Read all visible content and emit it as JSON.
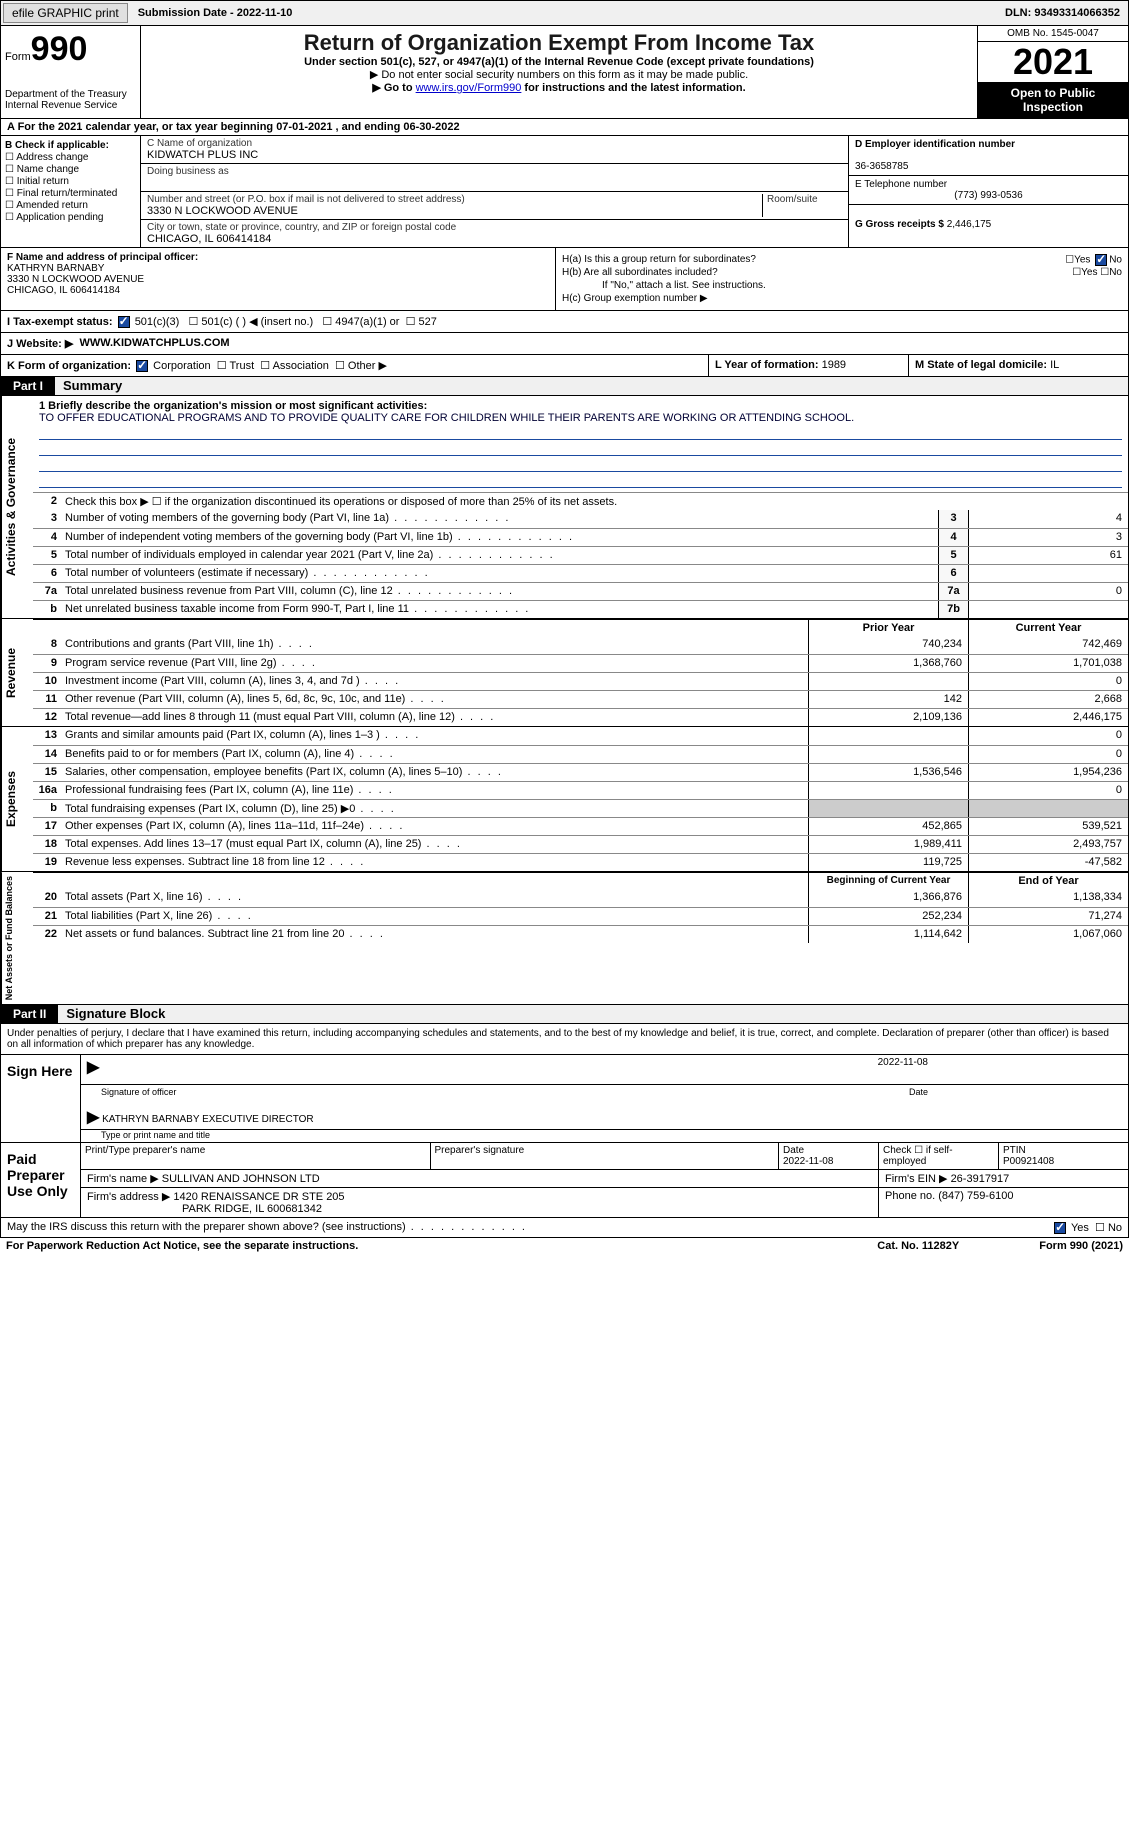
{
  "topbar": {
    "efile": "efile GRAPHIC print",
    "submission": "Submission Date - 2022-11-10",
    "dln": "DLN: 93493314066352"
  },
  "header": {
    "form_label": "Form",
    "form_num": "990",
    "dept": "Department of the Treasury",
    "irs": "Internal Revenue Service",
    "title": "Return of Organization Exempt From Income Tax",
    "sub": "Under section 501(c), 527, or 4947(a)(1) of the Internal Revenue Code (except private foundations)",
    "note1": "▶ Do not enter social security numbers on this form as it may be made public.",
    "note2_pre": "▶ Go to ",
    "note2_link": "www.irs.gov/Form990",
    "note2_post": " for instructions and the latest information.",
    "omb": "OMB No. 1545-0047",
    "year": "2021",
    "otp": "Open to Public Inspection"
  },
  "rowA": "A For the 2021 calendar year, or tax year beginning 07-01-2021   , and ending 06-30-2022",
  "sectionB": {
    "header": "B Check if applicable:",
    "opts": [
      "Address change",
      "Name change",
      "Initial return",
      "Final return/terminated",
      "Amended return",
      "Application pending"
    ]
  },
  "sectionC": {
    "name_lbl": "C Name of organization",
    "name": "KIDWATCH PLUS INC",
    "dba_lbl": "Doing business as",
    "addr_lbl": "Number and street (or P.O. box if mail is not delivered to street address)",
    "room_lbl": "Room/suite",
    "addr": "3330 N LOCKWOOD AVENUE",
    "city_lbl": "City or town, state or province, country, and ZIP or foreign postal code",
    "city": "CHICAGO, IL  606414184"
  },
  "sectionD": {
    "ein_lbl": "D Employer identification number",
    "ein": "36-3658785",
    "tel_lbl": "E Telephone number",
    "tel": "(773) 993-0536",
    "gross_lbl": "G Gross receipts $",
    "gross": "2,446,175"
  },
  "sectionF": {
    "lbl": "F Name and address of principal officer:",
    "name": "KATHRYN BARNABY",
    "addr1": "3330 N LOCKWOOD AVENUE",
    "addr2": "CHICAGO, IL  606414184"
  },
  "sectionH": {
    "a": "H(a)  Is this a group return for subordinates?",
    "b": "H(b)  Are all subordinates included?",
    "bnote": "If \"No,\" attach a list. See instructions.",
    "c": "H(c)  Group exemption number ▶"
  },
  "rowI": {
    "lbl": "I  Tax-exempt status:",
    "o1": "501(c)(3)",
    "o2": "501(c) (  ) ◀ (insert no.)",
    "o3": "4947(a)(1) or",
    "o4": "527"
  },
  "rowJ": {
    "lbl": "J  Website: ▶",
    "val": "WWW.KIDWATCHPLUS.COM"
  },
  "rowK": {
    "lbl": "K Form of organization:",
    "o1": "Corporation",
    "o2": "Trust",
    "o3": "Association",
    "o4": "Other ▶"
  },
  "rowL": {
    "lbl": "L Year of formation:",
    "val": "1989"
  },
  "rowM": {
    "lbl": "M State of legal domicile:",
    "val": "IL"
  },
  "part1": {
    "hdr": "Part I",
    "title": "Summary",
    "q1a": "1  Briefly describe the organization's mission or most significant activities:",
    "q1b": "TO OFFER EDUCATIONAL PROGRAMS AND TO PROVIDE QUALITY CARE FOR CHILDREN WHILE THEIR PARENTS ARE WORKING OR ATTENDING SCHOOL.",
    "q2": "Check this box ▶ ☐ if the organization discontinued its operations or disposed of more than 25% of its net assets.",
    "lines_top": [
      {
        "n": "3",
        "d": "Number of voting members of the governing body (Part VI, line 1a)",
        "b": "3",
        "v": "4"
      },
      {
        "n": "4",
        "d": "Number of independent voting members of the governing body (Part VI, line 1b)",
        "b": "4",
        "v": "3"
      },
      {
        "n": "5",
        "d": "Total number of individuals employed in calendar year 2021 (Part V, line 2a)",
        "b": "5",
        "v": "61"
      },
      {
        "n": "6",
        "d": "Total number of volunteers (estimate if necessary)",
        "b": "6",
        "v": ""
      },
      {
        "n": "7a",
        "d": "Total unrelated business revenue from Part VIII, column (C), line 12",
        "b": "7a",
        "v": "0"
      },
      {
        "n": "b",
        "d": "Net unrelated business taxable income from Form 990-T, Part I, line 11",
        "b": "7b",
        "v": ""
      }
    ],
    "col_prior": "Prior Year",
    "col_curr": "Current Year",
    "revenue": [
      {
        "n": "8",
        "d": "Contributions and grants (Part VIII, line 1h)",
        "p": "740,234",
        "c": "742,469"
      },
      {
        "n": "9",
        "d": "Program service revenue (Part VIII, line 2g)",
        "p": "1,368,760",
        "c": "1,701,038"
      },
      {
        "n": "10",
        "d": "Investment income (Part VIII, column (A), lines 3, 4, and 7d )",
        "p": "",
        "c": "0"
      },
      {
        "n": "11",
        "d": "Other revenue (Part VIII, column (A), lines 5, 6d, 8c, 9c, 10c, and 11e)",
        "p": "142",
        "c": "2,668"
      },
      {
        "n": "12",
        "d": "Total revenue—add lines 8 through 11 (must equal Part VIII, column (A), line 12)",
        "p": "2,109,136",
        "c": "2,446,175"
      }
    ],
    "expenses": [
      {
        "n": "13",
        "d": "Grants and similar amounts paid (Part IX, column (A), lines 1–3 )",
        "p": "",
        "c": "0"
      },
      {
        "n": "14",
        "d": "Benefits paid to or for members (Part IX, column (A), line 4)",
        "p": "",
        "c": "0"
      },
      {
        "n": "15",
        "d": "Salaries, other compensation, employee benefits (Part IX, column (A), lines 5–10)",
        "p": "1,536,546",
        "c": "1,954,236"
      },
      {
        "n": "16a",
        "d": "Professional fundraising fees (Part IX, column (A), line 11e)",
        "p": "",
        "c": "0"
      },
      {
        "n": "b",
        "d": "Total fundraising expenses (Part IX, column (D), line 25) ▶0",
        "p": "shade",
        "c": "shade"
      },
      {
        "n": "17",
        "d": "Other expenses (Part IX, column (A), lines 11a–11d, 11f–24e)",
        "p": "452,865",
        "c": "539,521"
      },
      {
        "n": "18",
        "d": "Total expenses. Add lines 13–17 (must equal Part IX, column (A), line 25)",
        "p": "1,989,411",
        "c": "2,493,757"
      },
      {
        "n": "19",
        "d": "Revenue less expenses. Subtract line 18 from line 12",
        "p": "119,725",
        "c": "-47,582"
      }
    ],
    "col_begin": "Beginning of Current Year",
    "col_end": "End of Year",
    "netassets": [
      {
        "n": "20",
        "d": "Total assets (Part X, line 16)",
        "p": "1,366,876",
        "c": "1,138,334"
      },
      {
        "n": "21",
        "d": "Total liabilities (Part X, line 26)",
        "p": "252,234",
        "c": "71,274"
      },
      {
        "n": "22",
        "d": "Net assets or fund balances. Subtract line 21 from line 20",
        "p": "1,114,642",
        "c": "1,067,060"
      }
    ],
    "vtab_ag": "Activities & Governance",
    "vtab_rev": "Revenue",
    "vtab_exp": "Expenses",
    "vtab_na": "Net Assets or Fund Balances"
  },
  "part2": {
    "hdr": "Part II",
    "title": "Signature Block",
    "decl": "Under penalties of perjury, I declare that I have examined this return, including accompanying schedules and statements, and to the best of my knowledge and belief, it is true, correct, and complete. Declaration of preparer (other than officer) is based on all information of which preparer has any knowledge.",
    "sign_here": "Sign Here",
    "sig_officer": "Signature of officer",
    "sig_date": "2022-11-08",
    "sig_name": "KATHRYN BARNABY  EXECUTIVE DIRECTOR",
    "sig_name_lbl": "Type or print name and title",
    "paid": "Paid Preparer Use Only",
    "pp_name_lbl": "Print/Type preparer's name",
    "pp_sig_lbl": "Preparer's signature",
    "pp_date_lbl": "Date",
    "pp_date": "2022-11-08",
    "pp_self": "Check ☐ if self-employed",
    "pp_ptin_lbl": "PTIN",
    "pp_ptin": "P00921408",
    "firm_name_lbl": "Firm's name    ▶",
    "firm_name": "SULLIVAN AND JOHNSON LTD",
    "firm_ein_lbl": "Firm's EIN ▶",
    "firm_ein": "26-3917917",
    "firm_addr_lbl": "Firm's address ▶",
    "firm_addr1": "1420 RENAISSANCE DR STE 205",
    "firm_addr2": "PARK RIDGE, IL  600681342",
    "firm_phone_lbl": "Phone no.",
    "firm_phone": "(847) 759-6100",
    "discuss": "May the IRS discuss this return with the preparer shown above? (see instructions)",
    "yes": "Yes",
    "no": "No"
  },
  "footer": {
    "pra": "For Paperwork Reduction Act Notice, see the separate instructions.",
    "cat": "Cat. No. 11282Y",
    "form": "Form 990 (2021)"
  }
}
